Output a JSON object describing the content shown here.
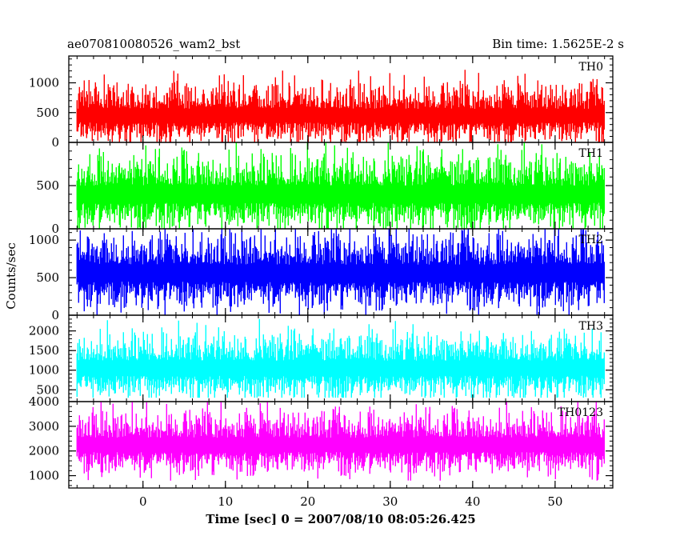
{
  "chart_data": {
    "type": "line",
    "title_left": "ae070810080526_wam2_bst",
    "title_right": "Bin time: 1.5625E-2 s",
    "xlabel": "Time [sec] 0 = 2007/08/10 08:05:26.425",
    "ylabel": "Counts/sec",
    "xlim": [
      -9,
      57
    ],
    "data_x_range": [
      -8,
      56
    ],
    "x_major_ticks": [
      0,
      10,
      20,
      30,
      40,
      50
    ],
    "x_minor_step": 2,
    "grid": false,
    "panels": [
      {
        "name": "TH0",
        "label": "TH0",
        "color": "#ff0000",
        "ylim": [
          0,
          1450
        ],
        "y_ticks": [
          0,
          500,
          1000
        ],
        "y_minor_step": 100,
        "mean": 450,
        "spread": 190,
        "max_spike": 1450,
        "min_floor": 0
      },
      {
        "name": "TH1",
        "label": "TH1",
        "color": "#00ff00",
        "ylim": [
          0,
          1000
        ],
        "y_ticks": [
          0,
          500
        ],
        "y_minor_step": 100,
        "mean": 400,
        "spread": 165,
        "max_spike": 1000,
        "min_floor": 0
      },
      {
        "name": "TH2",
        "label": "TH2",
        "color": "#0000ff",
        "ylim": [
          0,
          1150
        ],
        "y_ticks": [
          0,
          500,
          1000
        ],
        "y_minor_step": 100,
        "mean": 560,
        "spread": 190,
        "max_spike": 1150,
        "min_floor": 0
      },
      {
        "name": "TH3",
        "label": "TH3",
        "color": "#00ffff",
        "ylim": [
          200,
          2400
        ],
        "y_ticks": [
          500,
          1000,
          1500,
          2000
        ],
        "y_minor_step": 100,
        "mean": 1050,
        "spread": 320,
        "max_spike": 2400,
        "min_floor": 300
      },
      {
        "name": "TH0123",
        "label": "TH0123",
        "color": "#ff00ff",
        "ylim": [
          500,
          4000
        ],
        "y_ticks": [
          1000,
          2000,
          3000,
          4000
        ],
        "y_minor_step": 200,
        "mean": 2250,
        "spread": 480,
        "max_spike": 4000,
        "min_floor": 800
      }
    ]
  }
}
